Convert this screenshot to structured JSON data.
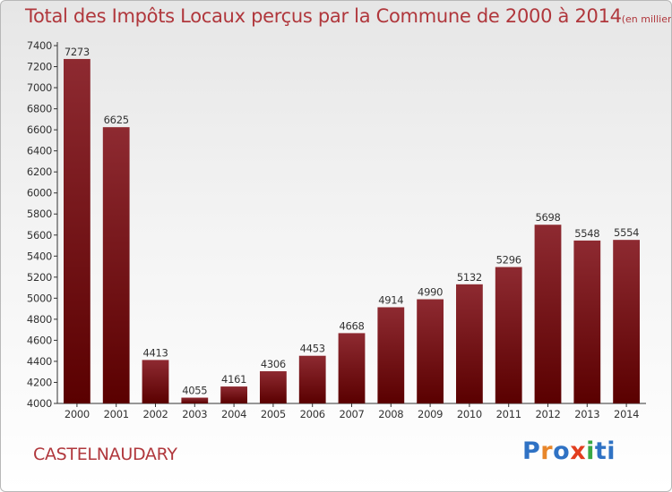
{
  "header": {
    "title": "Total des Impôts Locaux perçus par la Commune de 2000 à 2014",
    "unit": "(en milliers d'€)"
  },
  "footer": {
    "commune": "CASTELNAUDARY",
    "logo_text": "Proxiti",
    "logo_colors": [
      "#2f72c4",
      "#e8862a",
      "#2f72c4",
      "#e23e1f",
      "#39a845",
      "#2f72c4"
    ]
  },
  "colors": {
    "title": "#b0373c",
    "bar_top": "#8e2a31",
    "bar_bottom": "#5a0000"
  },
  "chart_data": {
    "type": "bar",
    "title": "Total des Impôts Locaux perçus par la Commune de 2000 à 2014",
    "categories": [
      "2000",
      "2001",
      "2002",
      "2003",
      "2004",
      "2005",
      "2006",
      "2007",
      "2008",
      "2009",
      "2010",
      "2011",
      "2012",
      "2013",
      "2014"
    ],
    "values": [
      7273,
      6625,
      4413,
      4055,
      4161,
      4306,
      4453,
      4668,
      4914,
      4990,
      5132,
      5296,
      5698,
      5548,
      5554
    ],
    "ylim": [
      4000,
      7400
    ],
    "ytick_step": 200,
    "data_labels": true,
    "grid": false,
    "legend": "none"
  }
}
